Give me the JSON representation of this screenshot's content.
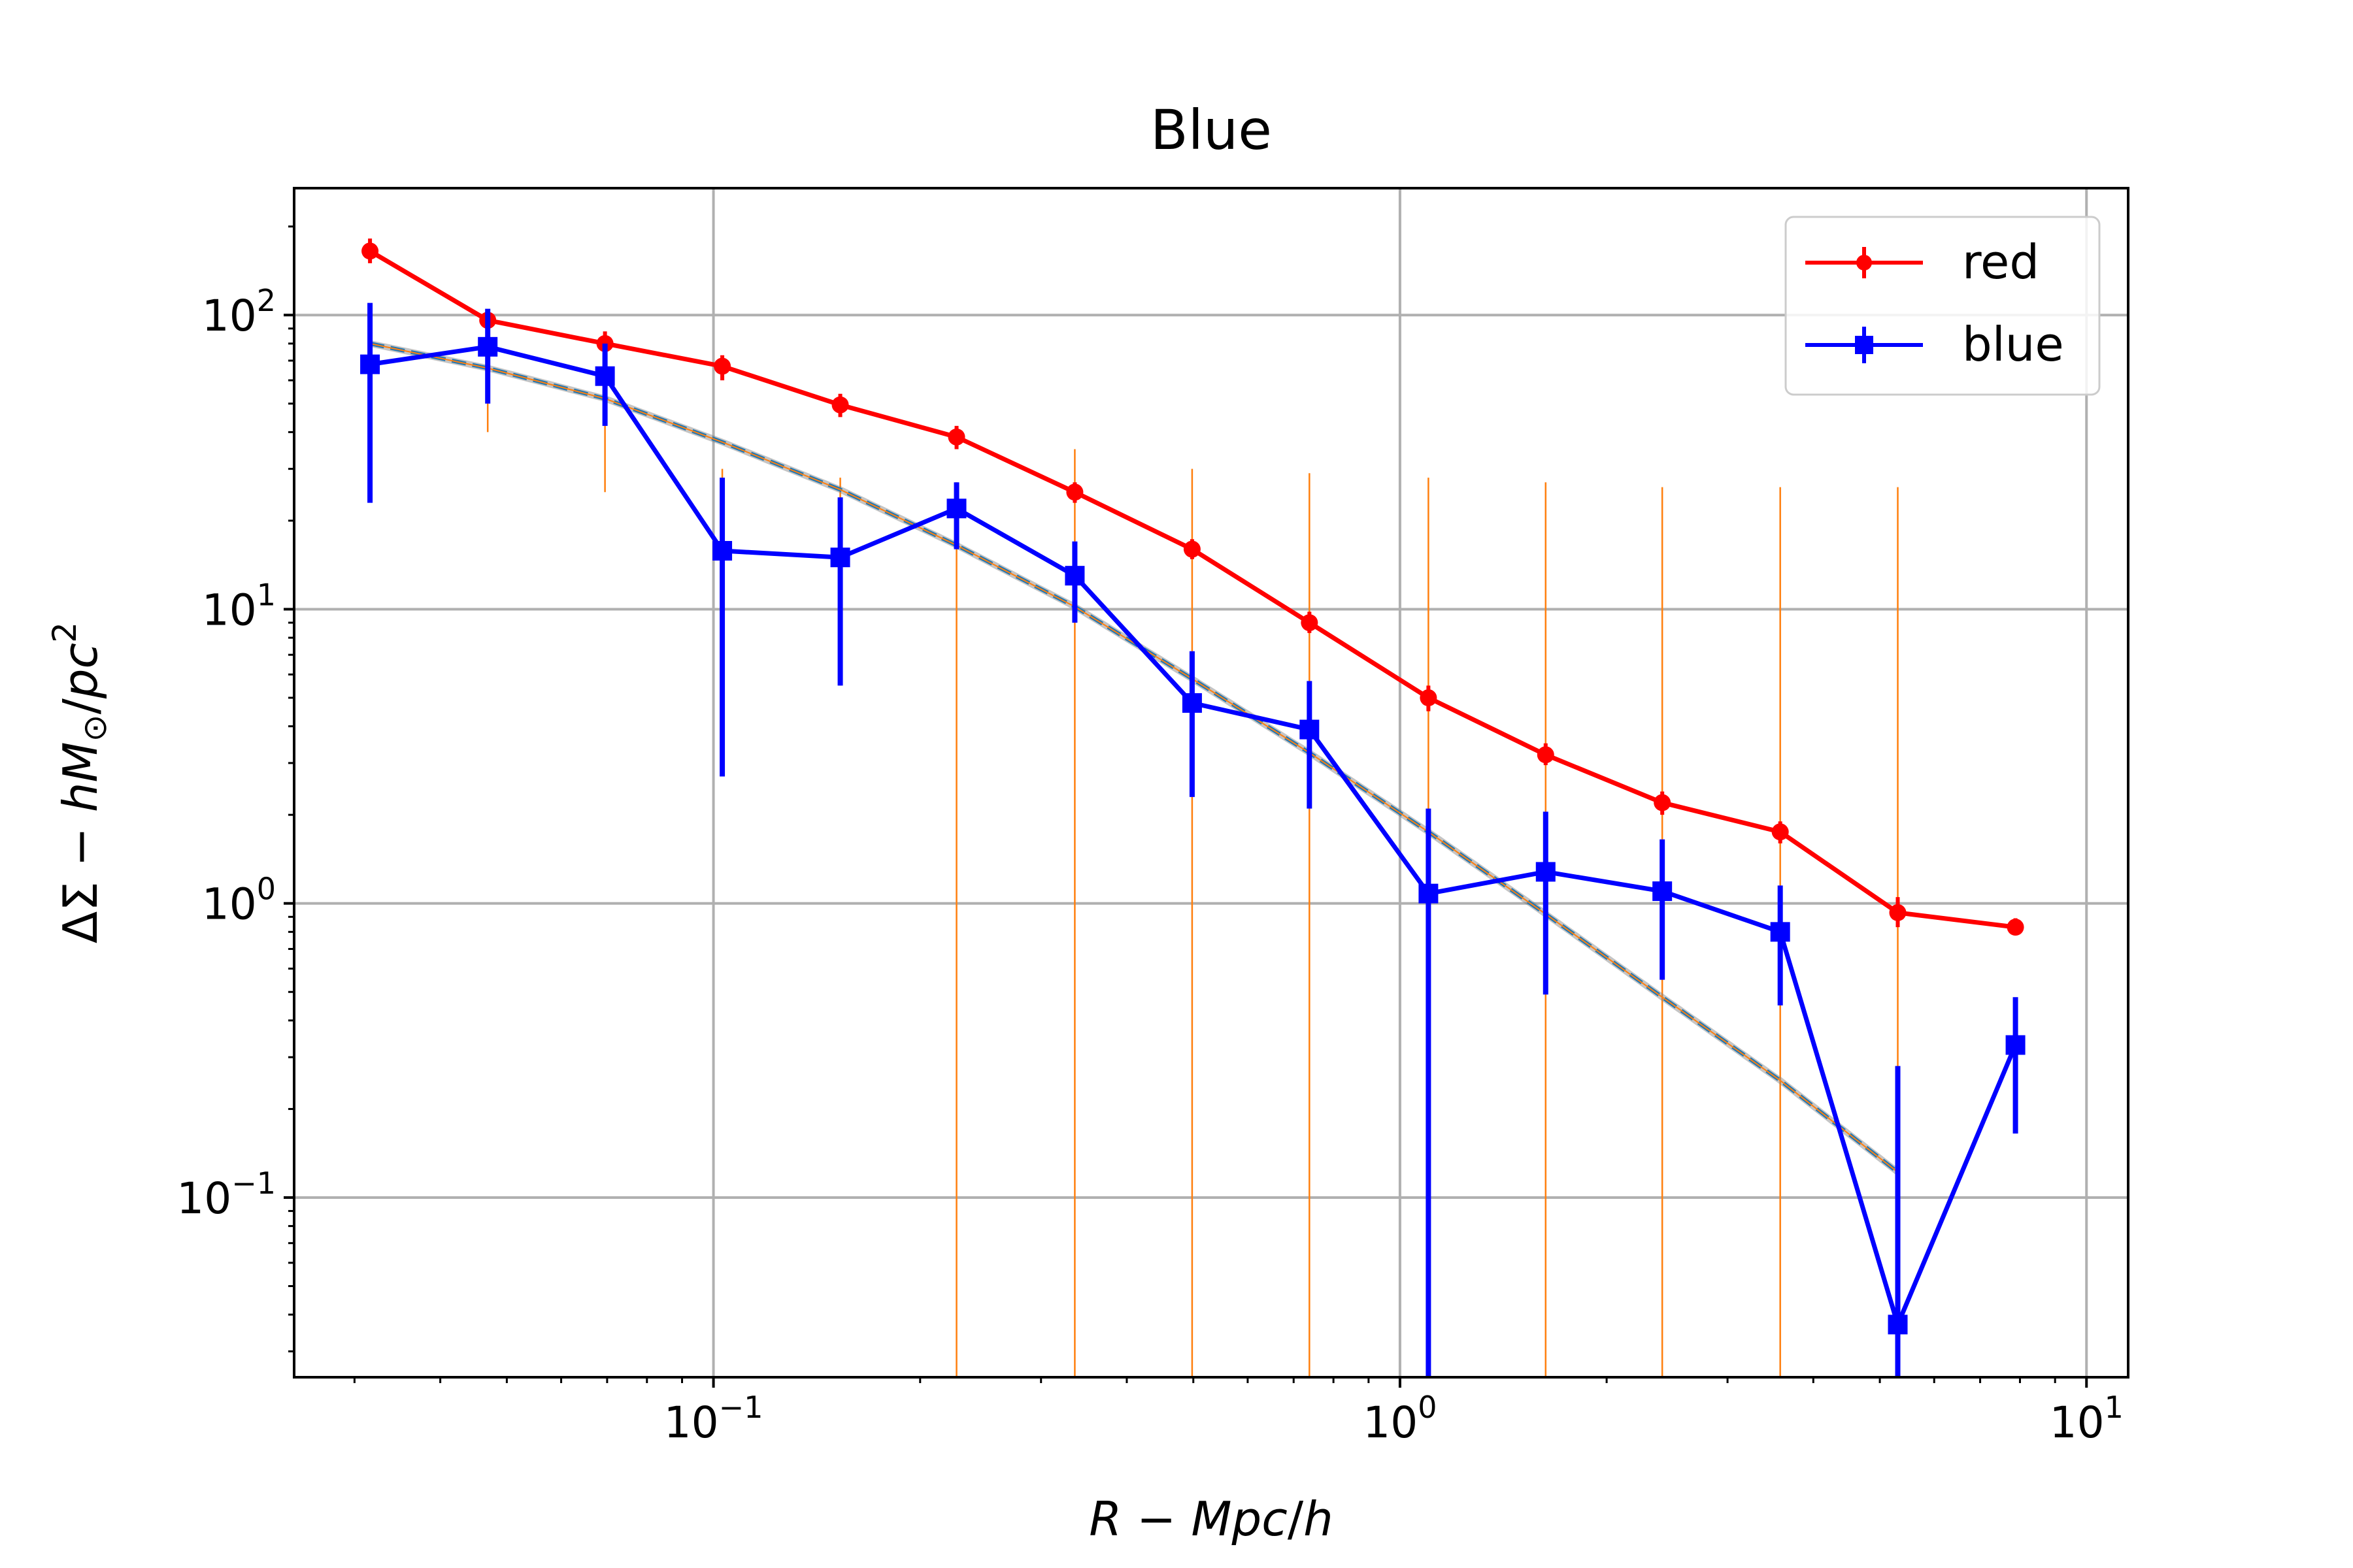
{
  "chart_data": {
    "type": "line",
    "title": "Blue",
    "xlabel_parts": [
      "R",
      " − ",
      "Mpc",
      "/",
      "h"
    ],
    "ylabel_parts": [
      "ΔΣ",
      " − ",
      "hM",
      "⊙",
      "/",
      "pc",
      "2"
    ],
    "xscale": "log",
    "yscale": "log",
    "xlim": [
      0.0245,
      11.5
    ],
    "ylim": [
      0.0245,
      270
    ],
    "grid": true,
    "legend_position": "top-right",
    "x_ticks": [
      {
        "value": 0.1,
        "base": "10",
        "exp": "−1"
      },
      {
        "value": 1,
        "base": "10",
        "exp": "0"
      },
      {
        "value": 10,
        "base": "10",
        "exp": "1"
      }
    ],
    "y_ticks": [
      {
        "value": 0.1,
        "base": "10",
        "exp": "−1"
      },
      {
        "value": 1,
        "base": "10",
        "exp": "0"
      },
      {
        "value": 10,
        "base": "10",
        "exp": "1"
      },
      {
        "value": 100,
        "base": "10",
        "exp": "2"
      }
    ],
    "x": [
      0.0316,
      0.0469,
      0.0695,
      0.103,
      0.153,
      0.226,
      0.336,
      0.498,
      0.738,
      1.1,
      1.63,
      2.41,
      3.58,
      5.31,
      7.88
    ],
    "series": [
      {
        "name": "red",
        "color": "#ff0000",
        "marker": "circle",
        "values": [
          165,
          96,
          80,
          67,
          49.5,
          38.5,
          25,
          16,
          9,
          5,
          3.2,
          2.2,
          1.75,
          0.93,
          0.83
        ],
        "err_low": [
          150,
          88,
          73,
          60,
          45,
          35,
          23,
          14.8,
          8.3,
          4.5,
          2.95,
          2.0,
          1.6,
          0.83,
          0.78
        ],
        "err_high": [
          182,
          104,
          88,
          73,
          54,
          42,
          27,
          17.3,
          9.8,
          5.5,
          3.5,
          2.4,
          1.9,
          1.05,
          0.89
        ]
      },
      {
        "name": "blue",
        "color": "#0000ff",
        "marker": "square",
        "values": [
          68,
          78,
          62,
          15.8,
          15,
          22,
          13,
          4.8,
          3.9,
          1.08,
          1.28,
          1.1,
          0.8,
          0.037,
          0.33
        ],
        "err_low": [
          23,
          50,
          42,
          2.7,
          5.5,
          16,
          9,
          2.3,
          2.1,
          0.02,
          0.49,
          0.55,
          0.45,
          0.02,
          0.165
        ],
        "err_high": [
          110,
          105,
          80,
          28,
          24,
          27,
          17,
          7.2,
          5.7,
          2.1,
          2.05,
          1.65,
          1.15,
          0.28,
          0.48
        ]
      }
    ],
    "model_errorbars": {
      "color": "#ff7f0e",
      "err_low": [
        60,
        40,
        25,
        12,
        5.5,
        0.02,
        0.02,
        0.02,
        0.02,
        0.02,
        0.02,
        0.02,
        0.02,
        0.02,
        null
      ],
      "err_high": [
        85,
        95,
        75,
        30,
        28,
        27,
        35,
        30,
        29,
        28,
        27,
        26,
        26,
        26,
        null
      ]
    },
    "model_curve": {
      "color": "#1f77b4",
      "overlay_color": "#ff7f0e",
      "x": [
        0.0316,
        0.0469,
        0.0695,
        0.103,
        0.153,
        0.226,
        0.336,
        0.498,
        0.738,
        1.1,
        1.63,
        2.41,
        3.58,
        5.31
      ],
      "y": [
        80,
        66,
        52,
        37,
        25.5,
        16.5,
        10.2,
        5.8,
        3.25,
        1.75,
        0.92,
        0.48,
        0.25,
        0.122
      ]
    }
  }
}
